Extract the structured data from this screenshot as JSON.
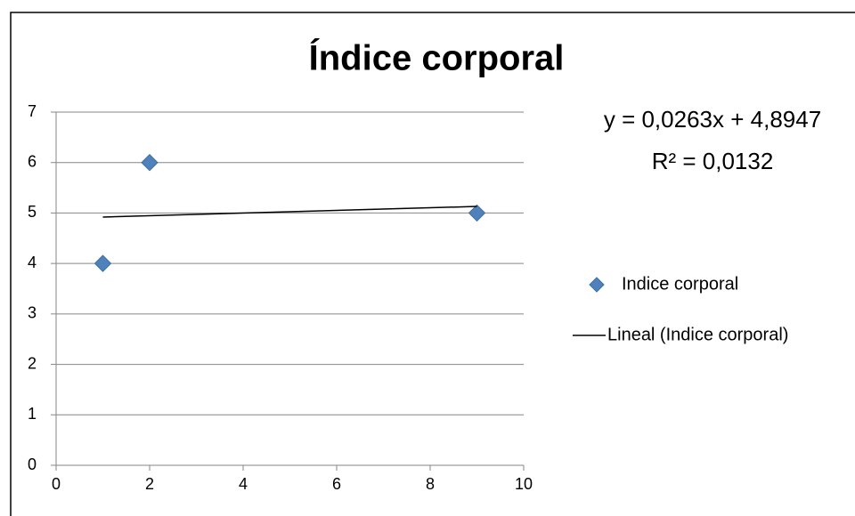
{
  "chart_data": {
    "type": "scatter",
    "title": "Índice corporal",
    "equation": "y = 0,0263x + 4,8947",
    "r_squared": "R² = 0,0132",
    "series": [
      {
        "name": "Indice corporal",
        "color": "#4f81bd",
        "x": [
          1,
          2,
          9
        ],
        "values": [
          4,
          6,
          5
        ]
      },
      {
        "name": "Lineal (Indice corporal)",
        "color": "#000000",
        "x": [
          1,
          9
        ],
        "values": [
          4.92,
          5.13
        ],
        "line": true
      }
    ],
    "xlim": [
      0,
      10
    ],
    "xticks": [
      0,
      2,
      4,
      6,
      8,
      10
    ],
    "ylim": [
      0,
      7
    ],
    "yticks": [
      0,
      1,
      2,
      3,
      4,
      5,
      6,
      7
    ],
    "grid": true,
    "legend": "right"
  }
}
